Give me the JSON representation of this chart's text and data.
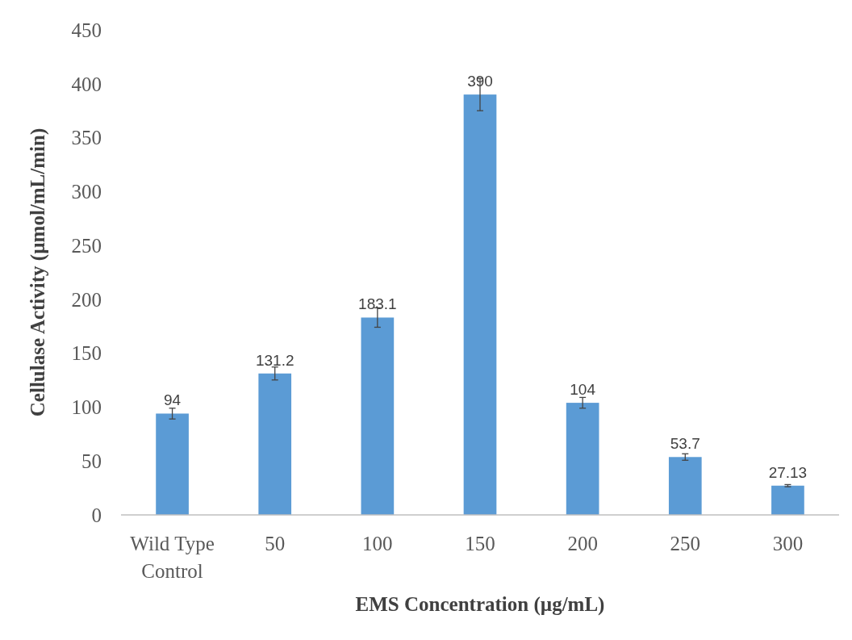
{
  "chart_data": {
    "type": "bar",
    "xlabel": "EMS Concentration (µg/mL)",
    "ylabel": "Cellulase Activity (µmol/mL/min)",
    "categories": [
      "Wild Type Control",
      "50",
      "100",
      "150",
      "200",
      "250",
      "300"
    ],
    "values": [
      94,
      131.2,
      183.1,
      390,
      104,
      53.7,
      27.13
    ],
    "errors": [
      5,
      6,
      9,
      15,
      5,
      3,
      1
    ],
    "color": "#5b9bd5",
    "data_labels": true,
    "ylim": [
      0,
      450
    ],
    "yticks": [
      0,
      50,
      100,
      150,
      200,
      250,
      300,
      350,
      400,
      450
    ],
    "grid": false
  }
}
